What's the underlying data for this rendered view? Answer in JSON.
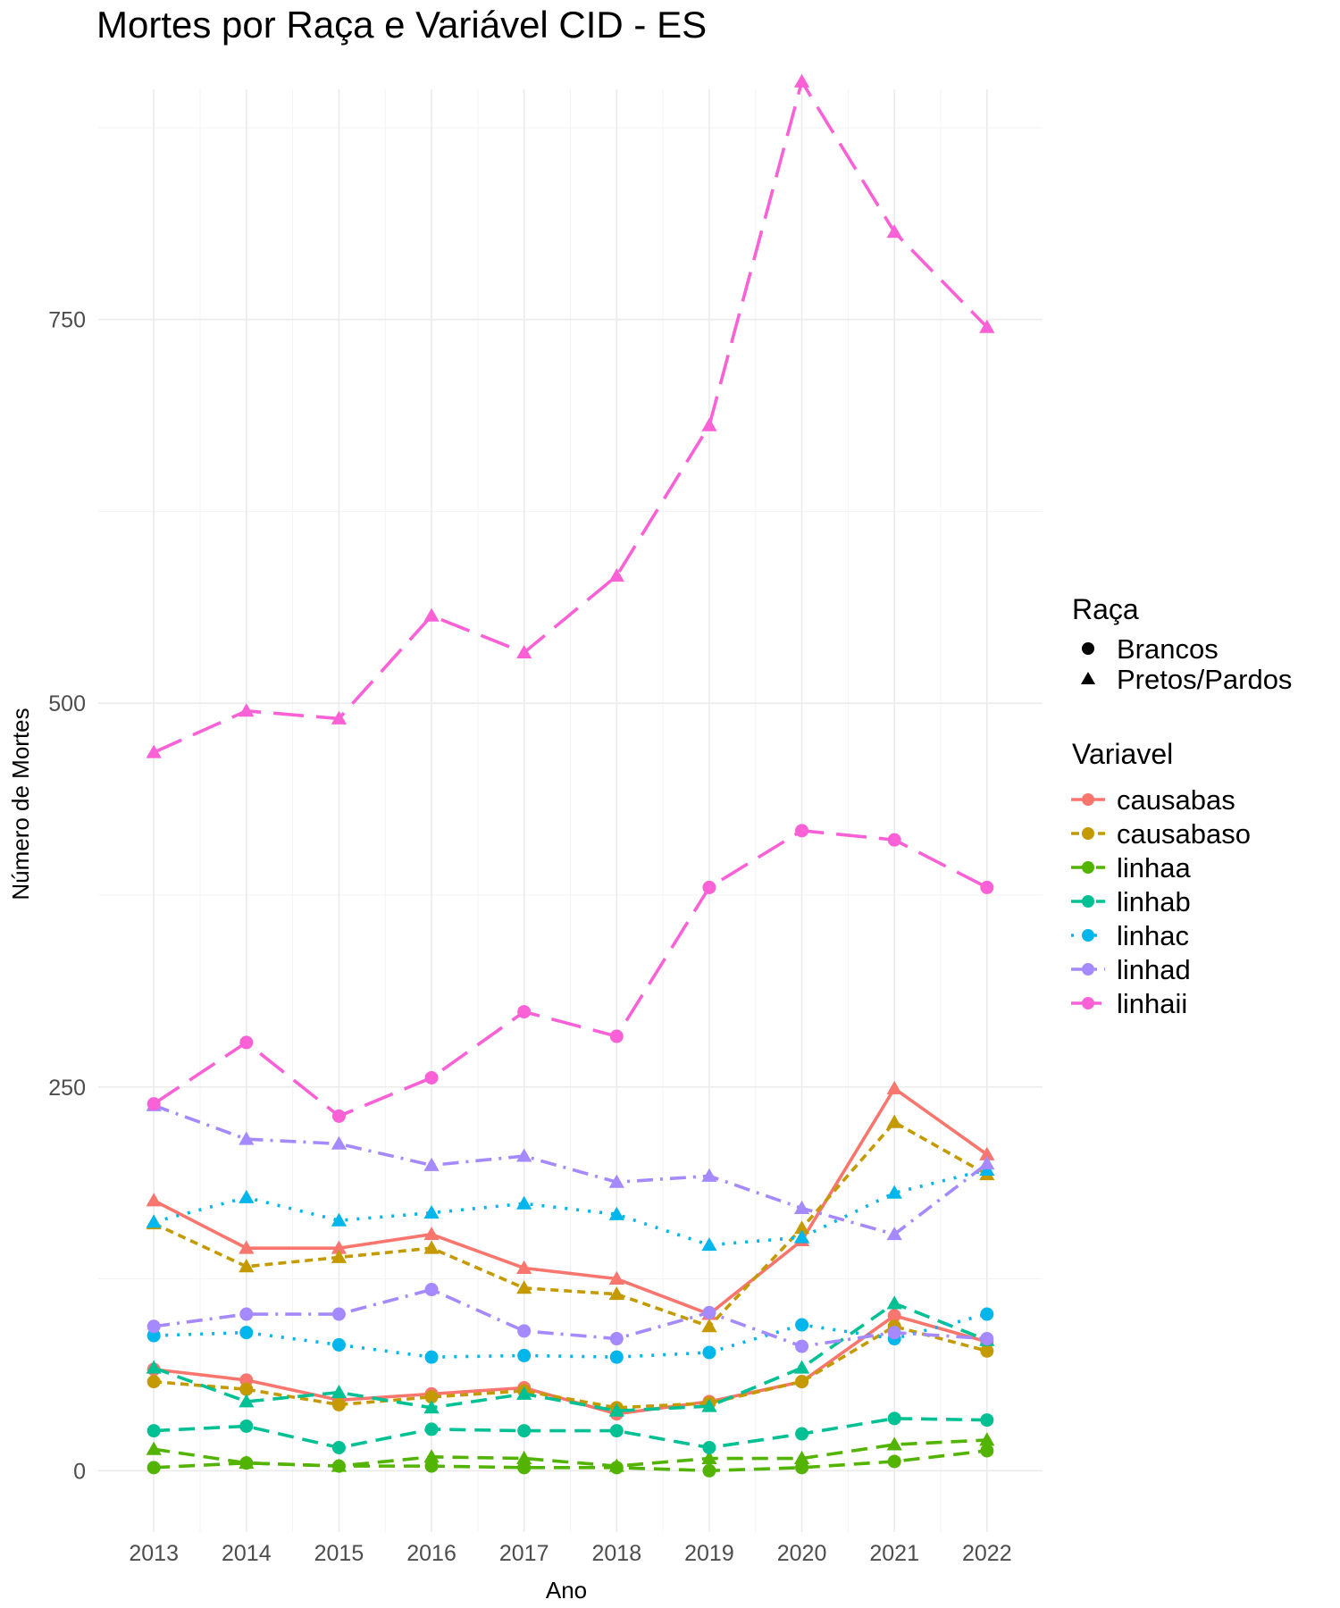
{
  "chart_data": {
    "type": "line",
    "title": "Mortes por Raça e Variável CID - ES",
    "xlabel": "Ano",
    "ylabel": "Número de Mortes",
    "x": [
      2013,
      2014,
      2015,
      2016,
      2017,
      2018,
      2019,
      2020,
      2021,
      2022
    ],
    "ylim": [
      -40,
      900
    ],
    "yticks": [
      0,
      250,
      500,
      750
    ],
    "grid": true,
    "legend_position": "right",
    "shape_legend": {
      "title": "Raça",
      "entries": [
        {
          "label": "Brancos",
          "shape": "circle"
        },
        {
          "label": "Pretos/Pardos",
          "shape": "triangle"
        }
      ]
    },
    "color_legend": {
      "title": "Variavel",
      "entries": [
        {
          "label": "causabas",
          "color": "#F8766D",
          "dash": "solid"
        },
        {
          "label": "causabaso",
          "color": "#C49A00",
          "dash": "short-dash"
        },
        {
          "label": "linhaa",
          "color": "#53B400",
          "dash": "dash"
        },
        {
          "label": "linhab",
          "color": "#00C094",
          "dash": "dash"
        },
        {
          "label": "linhac",
          "color": "#00B6EB",
          "dash": "dot"
        },
        {
          "label": "linhad",
          "color": "#A58AFF",
          "dash": "dash-dot"
        },
        {
          "label": "linhaii",
          "color": "#FB61D7",
          "dash": "long-dash"
        }
      ]
    },
    "series": [
      {
        "variavel": "causabas",
        "raca": "Brancos",
        "values": [
          66,
          59,
          46,
          50,
          54,
          37,
          45,
          58,
          101,
          84
        ]
      },
      {
        "variavel": "causabas",
        "raca": "Pretos/Pardos",
        "values": [
          176,
          145,
          145,
          154,
          132,
          125,
          102,
          150,
          249,
          206
        ]
      },
      {
        "variavel": "causabaso",
        "raca": "Brancos",
        "values": [
          58,
          53,
          43,
          48,
          52,
          41,
          44,
          58,
          94,
          78
        ]
      },
      {
        "variavel": "causabaso",
        "raca": "Pretos/Pardos",
        "values": [
          161,
          133,
          139,
          145,
          119,
          115,
          94,
          158,
          227,
          193
        ]
      },
      {
        "variavel": "linhaa",
        "raca": "Brancos",
        "values": [
          2,
          5,
          3,
          3,
          2,
          2,
          0,
          2,
          6,
          13
        ]
      },
      {
        "variavel": "linhaa",
        "raca": "Pretos/Pardos",
        "values": [
          14,
          5,
          3,
          9,
          8,
          3,
          8,
          8,
          17,
          20
        ]
      },
      {
        "variavel": "linhab",
        "raca": "Brancos",
        "values": [
          26,
          29,
          15,
          27,
          26,
          26,
          15,
          24,
          34,
          33
        ]
      },
      {
        "variavel": "linhab",
        "raca": "Pretos/Pardos",
        "values": [
          67,
          45,
          51,
          41,
          50,
          39,
          42,
          67,
          109,
          85
        ]
      },
      {
        "variavel": "linhac",
        "raca": "Brancos",
        "values": [
          88,
          90,
          82,
          74,
          75,
          74,
          77,
          95,
          86,
          102
        ]
      },
      {
        "variavel": "linhac",
        "raca": "Pretos/Pardos",
        "values": [
          162,
          178,
          163,
          168,
          174,
          167,
          147,
          152,
          181,
          196
        ]
      },
      {
        "variavel": "linhad",
        "raca": "Brancos",
        "values": [
          94,
          102,
          102,
          118,
          91,
          86,
          103,
          81,
          90,
          86
        ]
      },
      {
        "variavel": "linhad",
        "raca": "Pretos/Pardos",
        "values": [
          238,
          216,
          213,
          199,
          205,
          188,
          192,
          171,
          154,
          200
        ]
      },
      {
        "variavel": "linhaii",
        "raca": "Brancos",
        "values": [
          239,
          279,
          231,
          256,
          299,
          283,
          380,
          417,
          411,
          380
        ]
      },
      {
        "variavel": "linhaii",
        "raca": "Pretos/Pardos",
        "values": [
          468,
          495,
          490,
          557,
          533,
          583,
          681,
          905,
          807,
          745
        ]
      }
    ]
  }
}
